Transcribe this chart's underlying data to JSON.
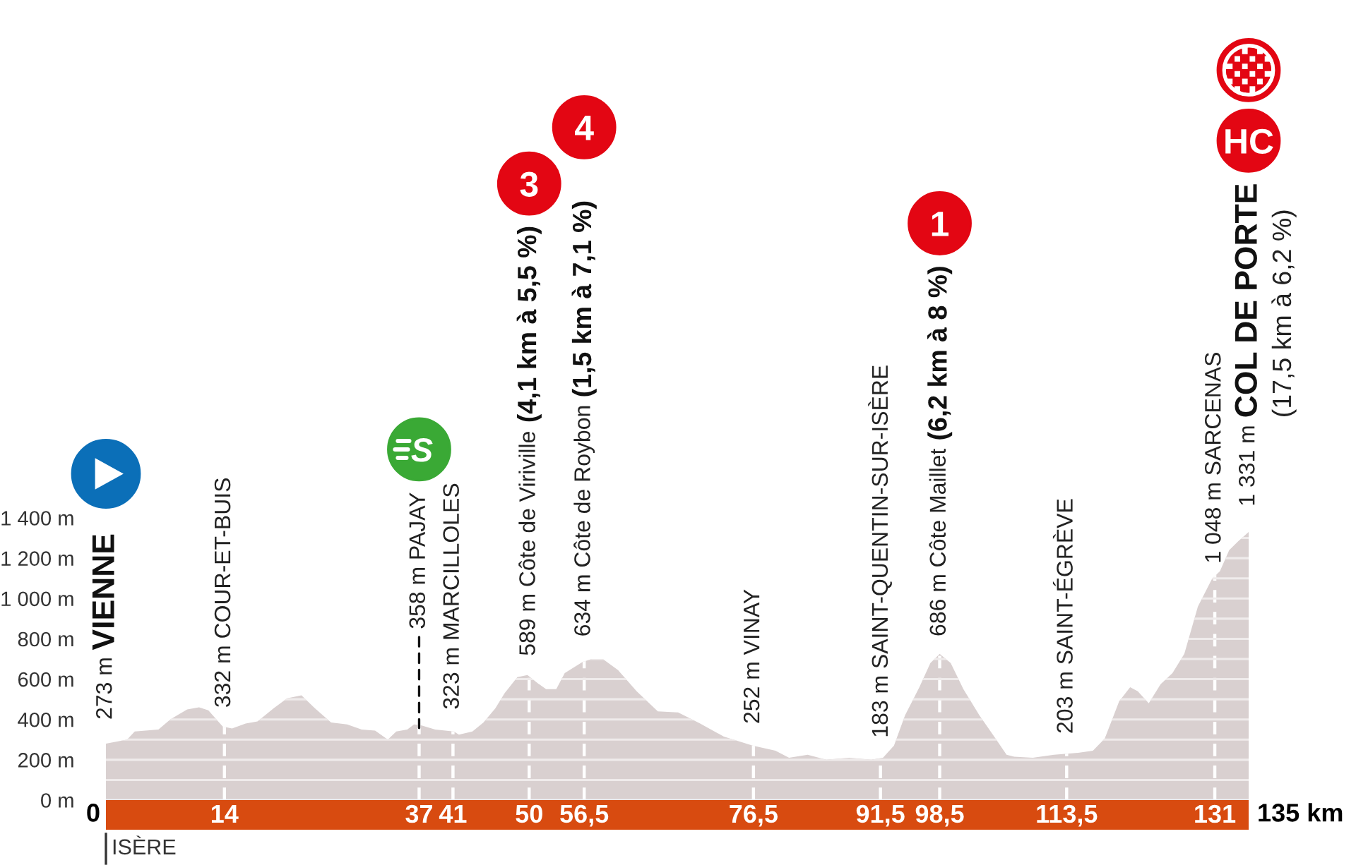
{
  "chart_data": {
    "type": "area",
    "color": "#d9d0d0",
    "x": [
      0,
      2.5,
      3.4,
      6.2,
      7.6,
      9.6,
      11.0,
      12.1,
      13.8,
      14.9,
      16.5,
      17.9,
      19.8,
      21.4,
      23.1,
      24.7,
      26.6,
      28.5,
      30.2,
      31.8,
      33.3,
      34.3,
      35.6,
      36.4,
      37.3,
      38.9,
      41.1,
      41.7,
      43.3,
      44.6,
      46.0,
      47.1,
      48.6,
      49.8,
      51.0,
      52.0,
      53.2,
      54.2,
      56.3,
      57.4,
      58.7,
      60.5,
      62.7,
      65.2,
      67.6,
      70.2,
      73.0,
      76.4,
      79.1,
      80.7,
      82.9,
      85.1,
      87.8,
      90.4,
      91.8,
      93.1,
      94.4,
      96.1,
      97.4,
      98.5,
      99.8,
      101.3,
      103.2,
      105.1,
      106.4,
      107.3,
      109.5,
      112.0,
      115.0,
      116.6,
      118.0,
      119.7,
      121.0,
      121.9,
      123.2,
      124.6,
      126.0,
      127.4,
      129.0,
      130.7,
      131.6,
      132.7,
      133.8,
      135
    ],
    "values": [
      280,
      300,
      340,
      350,
      400,
      450,
      460,
      445,
      365,
      355,
      380,
      390,
      455,
      505,
      520,
      455,
      385,
      375,
      350,
      345,
      300,
      340,
      350,
      375,
      370,
      350,
      340,
      325,
      340,
      385,
      455,
      530,
      610,
      620,
      580,
      550,
      550,
      630,
      685,
      700,
      700,
      645,
      540,
      440,
      435,
      380,
      315,
      270,
      245,
      210,
      225,
      200,
      210,
      200,
      210,
      270,
      420,
      560,
      680,
      725,
      680,
      550,
      420,
      305,
      225,
      215,
      210,
      225,
      235,
      245,
      305,
      490,
      560,
      540,
      480,
      575,
      630,
      725,
      960,
      1100,
      1135,
      1240,
      1285,
      1330
    ],
    "xlim": [
      0,
      135
    ],
    "xticks": [
      14,
      37,
      41,
      50,
      {
        "value": 56.5,
        "label": "56,5"
      },
      {
        "value": 76.5,
        "label": "76,5"
      },
      {
        "value": 91.5,
        "label": "91,5"
      },
      {
        "value": 98.5,
        "label": "98,5"
      },
      {
        "value": 113.5,
        "label": "113,5"
      },
      131
    ],
    "ylim": [
      0,
      1400
    ],
    "yticks": [
      {
        "value": 0,
        "label": "0 m"
      },
      {
        "value": 100,
        "label": null
      },
      {
        "value": 200,
        "label": "200 m"
      },
      {
        "value": 300,
        "label": null
      },
      {
        "value": 400,
        "label": "400 m"
      },
      {
        "value": 500,
        "label": null
      },
      {
        "value": 600,
        "label": "600 m"
      },
      {
        "value": 700,
        "label": null
      },
      {
        "value": 800,
        "label": "800 m"
      },
      {
        "value": 900,
        "label": null
      },
      {
        "value": 1000,
        "label": "1 000 m"
      },
      {
        "value": 1100,
        "label": null
      },
      {
        "value": 1200,
        "label": "1 200 m"
      },
      {
        "value": 1300,
        "label": null
      },
      {
        "value": 1400,
        "label": "1 400 m"
      }
    ],
    "grid": true,
    "ref_lines": [
      {
        "axis": "x",
        "value": 0,
        "label": "ISÈRE"
      }
    ],
    "annotations": [
      {
        "text": "273 m",
        "x": 0,
        "y": 273
      },
      "VIENNE",
      {
        "text": "332 m COUR-ET-BUIS",
        "x": 14,
        "y": 332
      },
      {
        "text": "358 m PAJAY",
        "x": 37,
        "y": 358
      },
      "S",
      {
        "text": "323 m MARCILLOLES",
        "x": 41,
        "y": 323
      },
      {
        "text": "589 m Côte de Viriville",
        "x": 50,
        "y": 589
      },
      "(4,1 km à 5,5 %)",
      "3",
      {
        "text": "634 m Côte de Roybon",
        "x": 56.5,
        "y": 685
      },
      "(1,5 km à 7,1 %)",
      "4",
      {
        "text": "252 m VINAY",
        "x": 76.5,
        "y": 252
      },
      {
        "text": "183 m SAINT-QUENTIN-SUR-ISÈRE",
        "x": 91.5,
        "y": 183
      },
      {
        "text": "686 m Côte Maillet",
        "x": 98.5,
        "y": 686
      },
      "(6,2 km à 8 %)",
      "1",
      {
        "text": "203 m SAINT-ÉGRÈVE",
        "x": 113.5,
        "y": 203
      },
      {
        "text": "1 048 m SARCENAS",
        "x": 131,
        "y": 1048
      },
      {
        "text": "1 331 m",
        "x": 135,
        "y": 1331
      },
      "COL DE PORTE",
      "(17,5 km à 6,2 %)",
      "HC",
      {
        "text": "0",
        "x": 0,
        "y": 0
      },
      {
        "text": "135 km",
        "x": 135,
        "y": 0
      }
    ]
  }
}
